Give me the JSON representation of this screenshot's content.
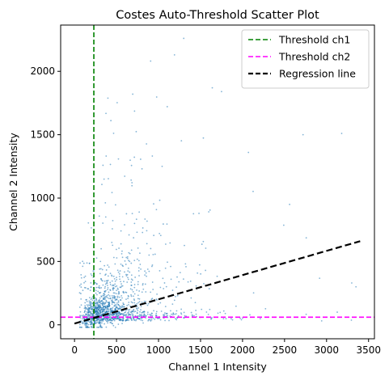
{
  "chart_data": {
    "type": "scatter",
    "title": "Costes Auto-Threshold Scatter Plot",
    "xlabel": "Channel 1 Intensity",
    "ylabel": "Channel 2 Intensity",
    "xlim": [
      -165,
      3570
    ],
    "ylim": [
      -110,
      2365
    ],
    "xticks": [
      0,
      500,
      1000,
      1500,
      2000,
      2500,
      3000,
      3500
    ],
    "yticks": [
      0,
      500,
      1000,
      1500,
      2000
    ],
    "grid": false,
    "legend_position": "top-right",
    "series": [
      {
        "kind": "scatter",
        "color": "#1f77b4",
        "approx_point_count": 1400,
        "distribution": "dense cluster near x 0-1100, y 0-700; long tails toward x 3400 along low y and toward y 2260 around x 1300",
        "sample_points": [
          [
            1300,
            2260
          ],
          [
            1190,
            2130
          ],
          [
            1640,
            1870
          ],
          [
            1750,
            1840
          ],
          [
            2070,
            1360
          ],
          [
            2720,
            1500
          ],
          [
            3180,
            1510
          ],
          [
            2560,
            950
          ],
          [
            3350,
            300
          ],
          [
            3300,
            330
          ]
        ]
      },
      {
        "name": "Threshold ch1",
        "kind": "vline",
        "x": 230,
        "color": "#008000",
        "dash": "dashed"
      },
      {
        "name": "Threshold ch2",
        "kind": "hline",
        "y": 60,
        "color": "#ff00ff",
        "dash": "dashed"
      },
      {
        "name": "Regression line",
        "kind": "line",
        "x": [
          0,
          3400
        ],
        "y": [
          10,
          660
        ],
        "color": "#000000",
        "dash": "dashed"
      }
    ]
  }
}
